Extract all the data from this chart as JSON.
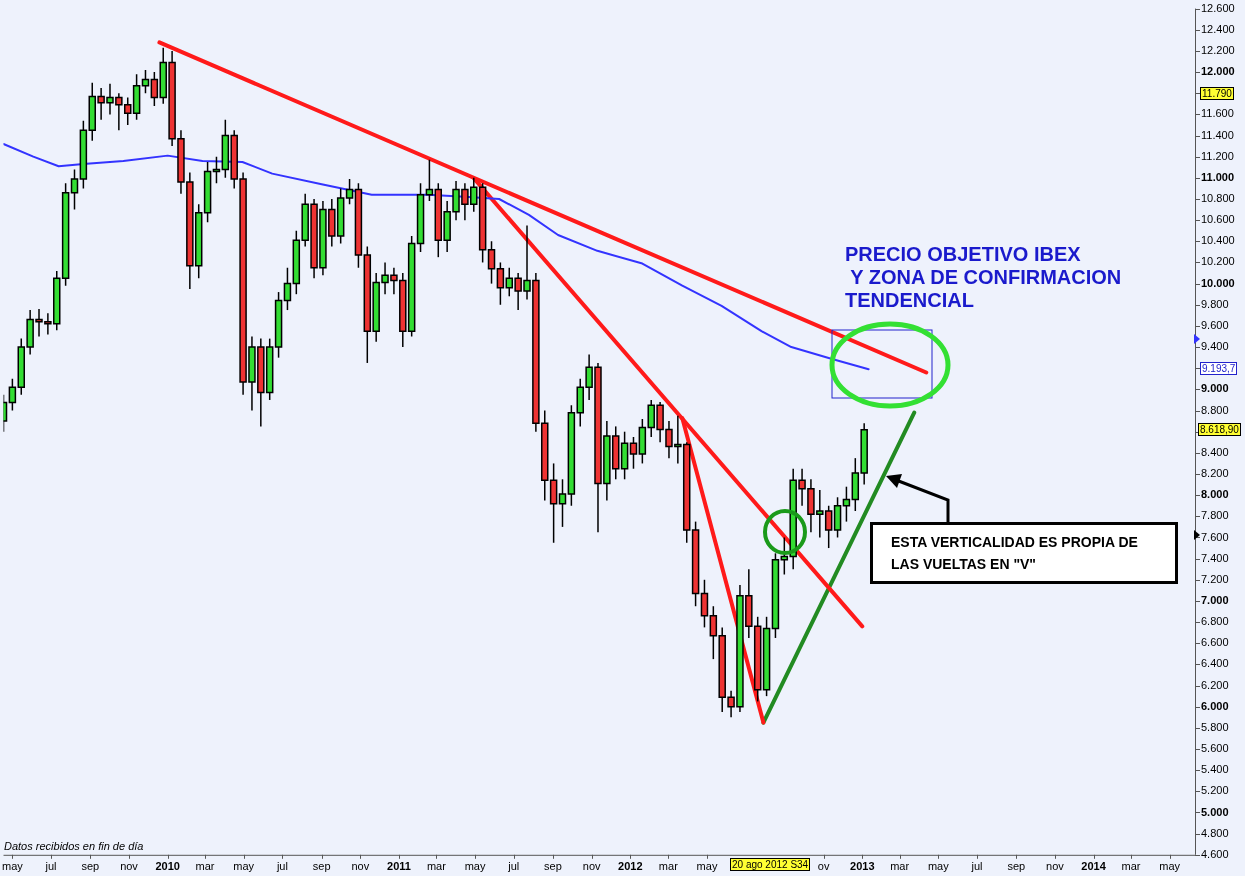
{
  "chart_data": {
    "type": "candlestick",
    "x": [
      "2009-04-17",
      "2009-05-01",
      "2009-05-15",
      "2009-05-29",
      "2009-06-12",
      "2009-06-26",
      "2009-07-10",
      "2009-07-24",
      "2009-08-07",
      "2009-08-21",
      "2009-09-04",
      "2009-09-18",
      "2009-10-02",
      "2009-10-16",
      "2009-10-30",
      "2009-11-13",
      "2009-11-27",
      "2009-12-11",
      "2009-12-25",
      "2010-01-08",
      "2010-01-22",
      "2010-02-05",
      "2010-02-19",
      "2010-03-05",
      "2010-03-19",
      "2010-04-02",
      "2010-04-16",
      "2010-04-30",
      "2010-05-14",
      "2010-05-28",
      "2010-06-11",
      "2010-06-25",
      "2010-07-09",
      "2010-07-23",
      "2010-08-06",
      "2010-08-20",
      "2010-09-03",
      "2010-09-17",
      "2010-10-01",
      "2010-10-15",
      "2010-10-29",
      "2010-11-12",
      "2010-11-26",
      "2010-12-10",
      "2010-12-24",
      "2011-01-07",
      "2011-01-21",
      "2011-02-04",
      "2011-02-18",
      "2011-03-04",
      "2011-03-18",
      "2011-04-01",
      "2011-04-15",
      "2011-04-29",
      "2011-05-13",
      "2011-05-27",
      "2011-06-10",
      "2011-06-24",
      "2011-07-08",
      "2011-07-22",
      "2011-08-05",
      "2011-08-19",
      "2011-09-02",
      "2011-09-16",
      "2011-09-30",
      "2011-10-14",
      "2011-10-28",
      "2011-11-11",
      "2011-11-25",
      "2011-12-09",
      "2011-12-23",
      "2012-01-06",
      "2012-01-20",
      "2012-02-03",
      "2012-02-17",
      "2012-03-02",
      "2012-03-16",
      "2012-03-30",
      "2012-04-13",
      "2012-04-27",
      "2012-05-11",
      "2012-05-25",
      "2012-06-08",
      "2012-06-22",
      "2012-07-06",
      "2012-07-20",
      "2012-08-03",
      "2012-08-17",
      "2012-08-31",
      "2012-09-14",
      "2012-09-28",
      "2012-10-12",
      "2012-10-26",
      "2012-11-09",
      "2012-11-23",
      "2012-12-07",
      "2012-12-21",
      "2013-01-04"
    ],
    "ohlc": [
      [
        8700,
        8950,
        8600,
        8875
      ],
      [
        8875,
        9100,
        8800,
        9020
      ],
      [
        9020,
        9480,
        8950,
        9400
      ],
      [
        9400,
        9750,
        9330,
        9660
      ],
      [
        9660,
        9760,
        9500,
        9640
      ],
      [
        9640,
        9720,
        9520,
        9620
      ],
      [
        9620,
        10120,
        9560,
        10050
      ],
      [
        10050,
        10950,
        9980,
        10860
      ],
      [
        10860,
        11080,
        10700,
        10990
      ],
      [
        10990,
        11540,
        10900,
        11450
      ],
      [
        11450,
        11900,
        11350,
        11770
      ],
      [
        11770,
        11850,
        11550,
        11710
      ],
      [
        11710,
        11890,
        11600,
        11760
      ],
      [
        11760,
        11800,
        11450,
        11690
      ],
      [
        11690,
        11760,
        11500,
        11610
      ],
      [
        11610,
        11980,
        11550,
        11870
      ],
      [
        11870,
        12020,
        11800,
        11930
      ],
      [
        11930,
        12000,
        11680,
        11760
      ],
      [
        11760,
        12230,
        11700,
        12090
      ],
      [
        12090,
        12200,
        11300,
        11370
      ],
      [
        11370,
        11450,
        10850,
        10960
      ],
      [
        10960,
        11050,
        9950,
        10170
      ],
      [
        10170,
        10750,
        10050,
        10670
      ],
      [
        10670,
        11150,
        10580,
        11060
      ],
      [
        11060,
        11200,
        10950,
        11080
      ],
      [
        11080,
        11550,
        11000,
        11400
      ],
      [
        11400,
        11450,
        10900,
        10990
      ],
      [
        10990,
        11050,
        8950,
        9070
      ],
      [
        9070,
        9500,
        8800,
        9400
      ],
      [
        9400,
        9480,
        8650,
        8970
      ],
      [
        8970,
        9480,
        8900,
        9400
      ],
      [
        9400,
        9920,
        9300,
        9840
      ],
      [
        9840,
        10150,
        9750,
        10000
      ],
      [
        10000,
        10500,
        9900,
        10410
      ],
      [
        10410,
        10850,
        10350,
        10750
      ],
      [
        10750,
        10800,
        10050,
        10150
      ],
      [
        10150,
        10780,
        10080,
        10700
      ],
      [
        10700,
        10800,
        10350,
        10450
      ],
      [
        10450,
        10900,
        10380,
        10810
      ],
      [
        10810,
        10990,
        10750,
        10890
      ],
      [
        10890,
        10950,
        10150,
        10270
      ],
      [
        10270,
        10350,
        9250,
        9550
      ],
      [
        9550,
        10100,
        9450,
        10010
      ],
      [
        10010,
        10200,
        9900,
        10080
      ],
      [
        10080,
        10150,
        9900,
        10030
      ],
      [
        10030,
        10100,
        9400,
        9550
      ],
      [
        9550,
        10450,
        9500,
        10380
      ],
      [
        10380,
        10950,
        10300,
        10840
      ],
      [
        10840,
        11170,
        10780,
        10890
      ],
      [
        10890,
        10950,
        10250,
        10410
      ],
      [
        10410,
        10780,
        10300,
        10680
      ],
      [
        10680,
        10970,
        10600,
        10890
      ],
      [
        10890,
        10950,
        10600,
        10750
      ],
      [
        10750,
        11000,
        10680,
        10910
      ],
      [
        10910,
        10950,
        10200,
        10320
      ],
      [
        10320,
        10400,
        10000,
        10140
      ],
      [
        10140,
        10200,
        9800,
        9960
      ],
      [
        9960,
        10150,
        9880,
        10050
      ],
      [
        10050,
        10100,
        9750,
        9930
      ],
      [
        9930,
        10550,
        9850,
        10030
      ],
      [
        10030,
        10100,
        8600,
        8680
      ],
      [
        8680,
        8800,
        7950,
        8140
      ],
      [
        8140,
        8300,
        7550,
        7920
      ],
      [
        7920,
        8150,
        7700,
        8010
      ],
      [
        8010,
        8850,
        7900,
        8780
      ],
      [
        8780,
        9100,
        8650,
        9020
      ],
      [
        9020,
        9330,
        8900,
        9210
      ],
      [
        9210,
        9250,
        7650,
        8110
      ],
      [
        8110,
        8700,
        7950,
        8560
      ],
      [
        8560,
        8650,
        8150,
        8250
      ],
      [
        8250,
        8600,
        8150,
        8490
      ],
      [
        8490,
        8550,
        8250,
        8390
      ],
      [
        8390,
        8720,
        8300,
        8640
      ],
      [
        8640,
        8900,
        8550,
        8850
      ],
      [
        8850,
        8880,
        8500,
        8620
      ],
      [
        8620,
        8700,
        8350,
        8460
      ],
      [
        8460,
        8750,
        8300,
        8480
      ],
      [
        8480,
        8500,
        7550,
        7670
      ],
      [
        7670,
        7750,
        6950,
        7070
      ],
      [
        7070,
        7200,
        6750,
        6860
      ],
      [
        6860,
        6950,
        6450,
        6670
      ],
      [
        6670,
        6750,
        5950,
        6090
      ],
      [
        6090,
        6150,
        5900,
        6000
      ],
      [
        6000,
        7150,
        5950,
        7050
      ],
      [
        7050,
        7300,
        6650,
        6760
      ],
      [
        6760,
        6850,
        6050,
        6160
      ],
      [
        6160,
        6850,
        6100,
        6740
      ],
      [
        6740,
        7450,
        6650,
        7390
      ],
      [
        7390,
        7600,
        7250,
        7420
      ],
      [
        7420,
        8250,
        7300,
        8140
      ],
      [
        8140,
        8250,
        7900,
        8060
      ],
      [
        8060,
        8150,
        7650,
        7820
      ],
      [
        7820,
        8050,
        7600,
        7850
      ],
      [
        7850,
        7900,
        7500,
        7670
      ],
      [
        7670,
        7980,
        7600,
        7900
      ],
      [
        7900,
        8080,
        7750,
        7960
      ],
      [
        7960,
        8350,
        7850,
        8210
      ],
      [
        8210,
        8680,
        8100,
        8619
      ]
    ],
    "colors": [
      "#33dd33",
      "#33dd33",
      "#33dd33",
      "#33dd33",
      "#ee3333",
      "#ee3333",
      "#33dd33",
      "#33dd33",
      "#33dd33",
      "#33dd33",
      "#33dd33",
      "#ee3333",
      "#33dd33",
      "#ee3333",
      "#ee3333",
      "#33dd33",
      "#33dd33",
      "#ee3333",
      "#33dd33",
      "#ee3333",
      "#ee3333",
      "#ee3333",
      "#33dd33",
      "#33dd33",
      "#33dd33",
      "#33dd33",
      "#ee3333",
      "#ee3333",
      "#33dd33",
      "#ee3333",
      "#33dd33",
      "#33dd33",
      "#33dd33",
      "#33dd33",
      "#33dd33",
      "#ee3333",
      "#33dd33",
      "#ee3333",
      "#33dd33",
      "#33dd33",
      "#ee3333",
      "#ee3333",
      "#33dd33",
      "#33dd33",
      "#ee3333",
      "#ee3333",
      "#33dd33",
      "#33dd33",
      "#33dd33",
      "#ee3333",
      "#33dd33",
      "#33dd33",
      "#ee3333",
      "#33dd33",
      "#ee3333",
      "#ee3333",
      "#ee3333",
      "#33dd33",
      "#ee3333",
      "#33dd33",
      "#ee3333",
      "#ee3333",
      "#ee3333",
      "#33dd33",
      "#33dd33",
      "#33dd33",
      "#33dd33",
      "#ee3333",
      "#33dd33",
      "#ee3333",
      "#33dd33",
      "#ee3333",
      "#33dd33",
      "#33dd33",
      "#ee3333",
      "#ee3333",
      "#33dd33",
      "#ee3333",
      "#ee3333",
      "#ee3333",
      "#ee3333",
      "#ee3333",
      "#ee3333",
      "#33dd33",
      "#ee3333",
      "#ee3333",
      "#33dd33",
      "#33dd33",
      "#33dd33",
      "#33dd33",
      "#ee3333",
      "#ee3333",
      "#33dd33",
      "#ee3333",
      "#33dd33",
      "#33dd33",
      "#33dd33",
      "#33dd33"
    ],
    "series": [
      {
        "type": "line",
        "color": "#3333ff",
        "x": [
          "2009-04-17",
          "2009-06-03",
          "2009-07-13",
          "2009-08-21",
          "2009-10-23",
          "2010-01-01",
          "2010-02-25",
          "2010-04-29",
          "2010-06-15",
          "2010-09-01",
          "2010-11-19",
          "2011-01-04",
          "2011-02-16",
          "2011-04-21",
          "2011-06-08",
          "2011-07-25",
          "2011-09-09",
          "2011-11-10",
          "2012-01-20",
          "2012-03-23",
          "2012-05-24",
          "2012-07-26",
          "2012-09-11",
          "2012-11-13",
          "2013-01-11"
        ],
        "values": [
          11320,
          11200,
          11110,
          11130,
          11160,
          11210,
          11160,
          11150,
          11040,
          10940,
          10840,
          10840,
          10840,
          10820,
          10800,
          10650,
          10460,
          10310,
          10190,
          9980,
          9790,
          9550,
          9400,
          9290,
          9190
        ]
      },
      {
        "type": "line",
        "color": "#ff1a1a",
        "x": [
          "2009-12-19",
          "2013-04-12"
        ],
        "values": [
          12280,
          9160
        ]
      },
      {
        "type": "line",
        "color": "#ff1a1a",
        "x": [
          "2011-04-30",
          "2013-01-01"
        ],
        "values": [
          10990,
          6760
        ]
      },
      {
        "type": "line",
        "color": "#ff1a1a",
        "x": [
          "2012-03-23",
          "2012-07-29"
        ],
        "values": [
          8730,
          5850
        ]
      },
      {
        "type": "line",
        "color": "#228b22",
        "x": [
          "2012-07-29",
          "2013-03-24"
        ],
        "values": [
          5850,
          8780
        ]
      }
    ],
    "xlim": [
      "2009-04-17",
      "2014-06-10"
    ],
    "xticks": [
      {
        "value": "2009-05-01",
        "label": "may"
      },
      {
        "value": "2009-07-01",
        "label": "jul"
      },
      {
        "value": "2009-09-01",
        "label": "sep"
      },
      {
        "value": "2009-11-01",
        "label": "nov"
      },
      {
        "value": "2010-01-01",
        "label": "2010"
      },
      {
        "value": "2010-03-01",
        "label": "mar"
      },
      {
        "value": "2010-05-01",
        "label": "may"
      },
      {
        "value": "2010-07-01",
        "label": "jul"
      },
      {
        "value": "2010-09-01",
        "label": "sep"
      },
      {
        "value": "2010-11-01",
        "label": "nov"
      },
      {
        "value": "2011-01-01",
        "label": "2011"
      },
      {
        "value": "2011-03-01",
        "label": "mar"
      },
      {
        "value": "2011-05-01",
        "label": "may"
      },
      {
        "value": "2011-07-01",
        "label": "jul"
      },
      {
        "value": "2011-09-01",
        "label": "sep"
      },
      {
        "value": "2011-11-01",
        "label": "nov"
      },
      {
        "value": "2012-01-01",
        "label": "2012"
      },
      {
        "value": "2012-03-01",
        "label": "mar"
      },
      {
        "value": "2012-05-01",
        "label": "may"
      },
      {
        "value": "2012-11-01",
        "label": "ov"
      },
      {
        "value": "2013-01-01",
        "label": "2013"
      },
      {
        "value": "2013-03-01",
        "label": "mar"
      },
      {
        "value": "2013-05-01",
        "label": "may"
      },
      {
        "value": "2013-07-01",
        "label": "jul"
      },
      {
        "value": "2013-09-01",
        "label": "sep"
      },
      {
        "value": "2013-11-01",
        "label": "nov"
      },
      {
        "value": "2014-01-01",
        "label": "2014"
      },
      {
        "value": "2014-03-01",
        "label": "mar"
      },
      {
        "value": "2014-05-01",
        "label": "may"
      }
    ],
    "ylim": [
      4600,
      12600
    ],
    "yticks": [
      {
        "value": 4600,
        "label": "4.600"
      },
      {
        "value": 4800,
        "label": "4.800"
      },
      {
        "value": 5000,
        "label": "5.000"
      },
      {
        "value": 5200,
        "label": "5.200"
      },
      {
        "value": 5400,
        "label": "5.400"
      },
      {
        "value": 5600,
        "label": "5.600"
      },
      {
        "value": 5800,
        "label": "5.800"
      },
      {
        "value": 6000,
        "label": "6.000"
      },
      {
        "value": 6200,
        "label": "6.200"
      },
      {
        "value": 6400,
        "label": "6.400"
      },
      {
        "value": 6600,
        "label": "6.600"
      },
      {
        "value": 6800,
        "label": "6.800"
      },
      {
        "value": 7000,
        "label": "7.000"
      },
      {
        "value": 7200,
        "label": "7.200"
      },
      {
        "value": 7400,
        "label": "7.400"
      },
      {
        "value": 7600,
        "label": "7.600"
      },
      {
        "value": 7800,
        "label": "7.800"
      },
      {
        "value": 8000,
        "label": "8.000"
      },
      {
        "value": 8200,
        "label": "8.200"
      },
      {
        "value": 8400,
        "label": "8.400"
      },
      {
        "value": 8600,
        "label": null
      },
      {
        "value": 8800,
        "label": "8.800"
      },
      {
        "value": 9000,
        "label": "9.000"
      },
      {
        "value": 9200,
        "label": null
      },
      {
        "value": 9400,
        "label": "9.400"
      },
      {
        "value": 9600,
        "label": "9.600"
      },
      {
        "value": 9800,
        "label": "9.800"
      },
      {
        "value": 10000,
        "label": "10.000"
      },
      {
        "value": 10200,
        "label": "10.200"
      },
      {
        "value": 10400,
        "label": "10.400"
      },
      {
        "value": 10600,
        "label": "10.600"
      },
      {
        "value": 10800,
        "label": "10.800"
      },
      {
        "value": 11000,
        "label": "11.000"
      },
      {
        "value": 11200,
        "label": "11.200"
      },
      {
        "value": 11400,
        "label": "11.400"
      },
      {
        "value": 11600,
        "label": "11.600"
      },
      {
        "value": 11800,
        "label": null
      },
      {
        "value": 12000,
        "label": "12.000"
      },
      {
        "value": 12200,
        "label": "12.200"
      },
      {
        "value": 12400,
        "label": "12.400"
      },
      {
        "value": 12600,
        "label": "12.600"
      }
    ],
    "annotations": [
      "PRECIO OBJETIVO IBEX",
      " Y ZONA DE CONFIRMACION",
      "TENDENCIAL",
      "ESTA VERTICALIDAD ES PROPIA DE LAS VUELTAS EN \"V\"",
      "Datos recibidos en fin de día",
      "11.790",
      "9.193,7",
      "8.618,90",
      "20 ago 2012 S34"
    ]
  }
}
